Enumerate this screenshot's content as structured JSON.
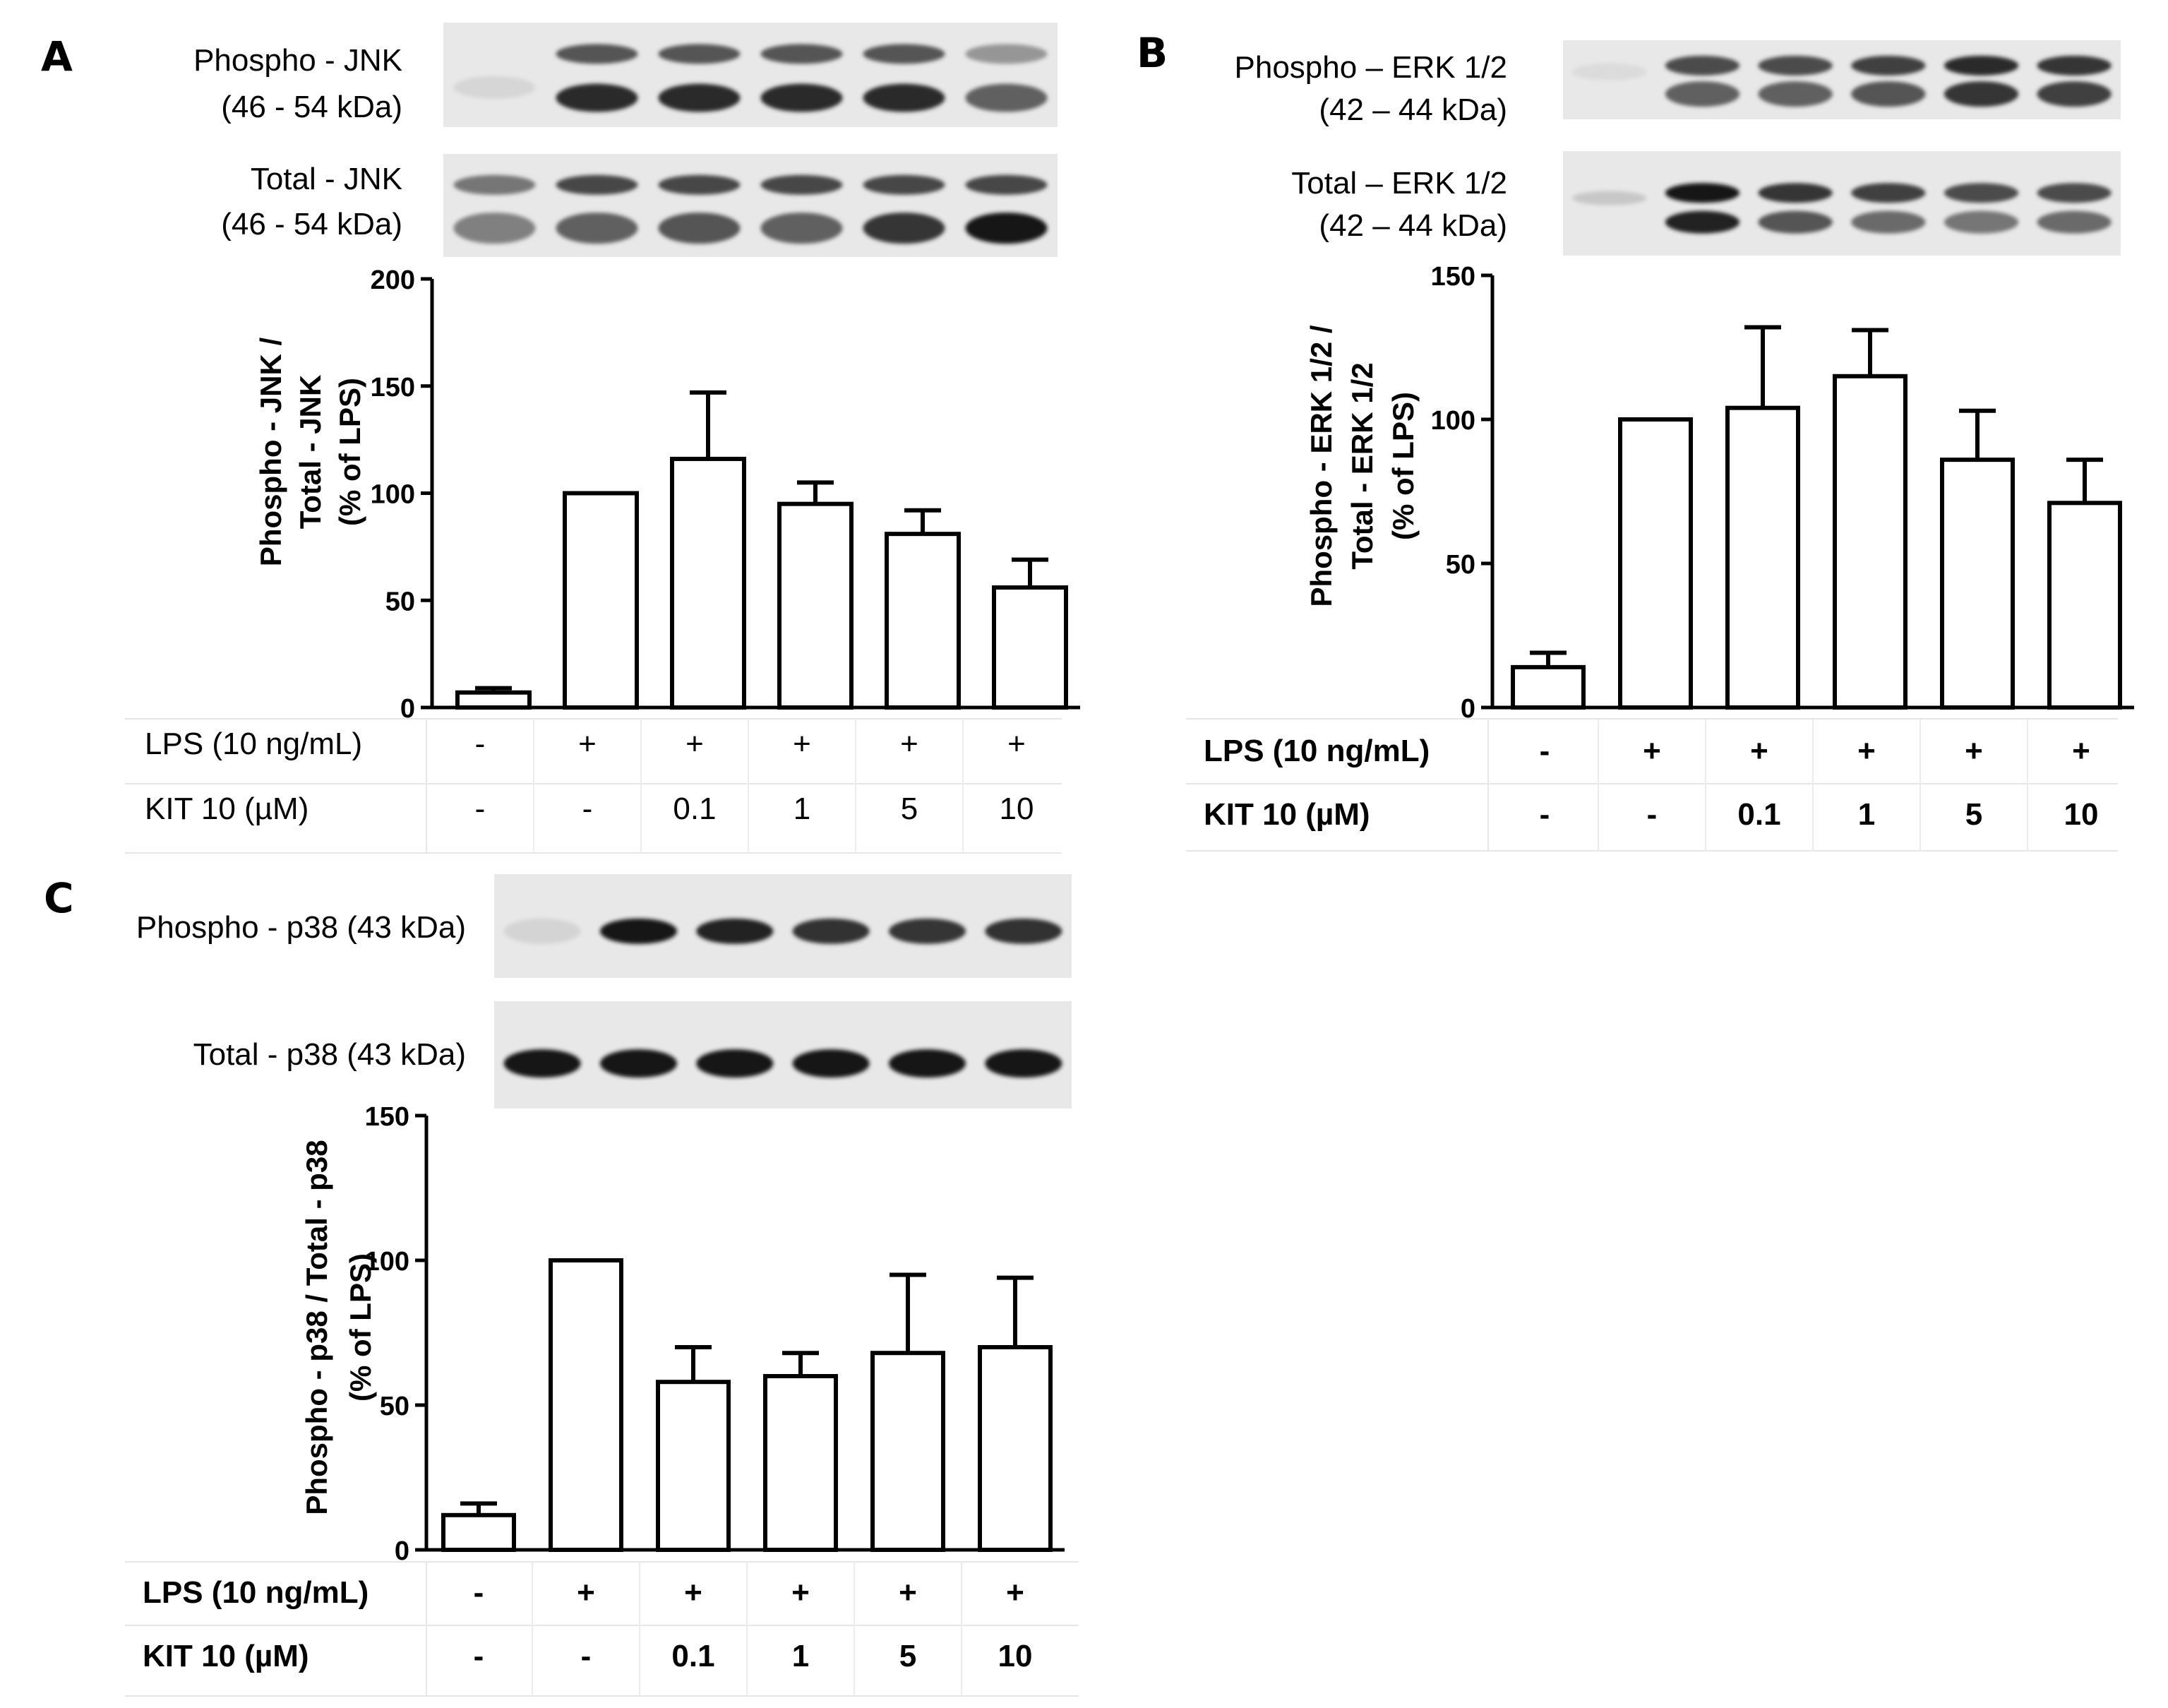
{
  "figure": {
    "panels": [
      {
        "letter": "A",
        "blot_rows": [
          {
            "label_lines": [
              "Phospho - JNK",
              "(46 - 54 kDa)"
            ],
            "pattern": "doublet_phospho_jnk"
          },
          {
            "label_lines": [
              "Total - JNK",
              "(46 - 54 kDa)"
            ],
            "pattern": "doublet_total_jnk"
          }
        ],
        "condition_rows": [
          {
            "label": "LPS (10 ng/mL)",
            "values": [
              "-",
              "+",
              "+",
              "+",
              "+",
              "+"
            ]
          },
          {
            "label": "KIT 10 (µM)",
            "values": [
              "-",
              "-",
              "0.1",
              "1",
              "5",
              "10"
            ]
          }
        ],
        "bold_labels": false
      },
      {
        "letter": "B",
        "blot_rows": [
          {
            "label_lines": [
              "Phospho – ERK 1/2",
              "(42 – 44 kDa)"
            ],
            "pattern": "doublet_phospho_erk"
          },
          {
            "label_lines": [
              "Total – ERK 1/2",
              "(42 – 44 kDa)"
            ],
            "pattern": "doublet_total_erk"
          }
        ],
        "condition_rows": [
          {
            "label": "LPS (10 ng/mL)",
            "values": [
              "-",
              "+",
              "+",
              "+",
              "+",
              "+"
            ]
          },
          {
            "label": "KIT 10 (µM)",
            "values": [
              "-",
              "-",
              "0.1",
              "1",
              "5",
              "10"
            ]
          }
        ],
        "bold_labels": true
      },
      {
        "letter": "C",
        "blot_rows": [
          {
            "label_lines": [
              "Phospho - p38 (43 kDa)"
            ],
            "pattern": "single_phospho_p38"
          },
          {
            "label_lines": [
              "Total - p38 (43 kDa)"
            ],
            "pattern": "single_total_p38"
          }
        ],
        "condition_rows": [
          {
            "label": "LPS (10 ng/mL)",
            "values": [
              "-",
              "+",
              "+",
              "+",
              "+",
              "+"
            ]
          },
          {
            "label": "KIT 10 (µM)",
            "values": [
              "-",
              "-",
              "0.1",
              "1",
              "5",
              "10"
            ]
          }
        ],
        "bold_labels": true
      }
    ]
  },
  "chart_data": [
    {
      "panel": "A",
      "type": "bar",
      "ylabel_lines": [
        "Phospho - JNK /",
        "Total - JNK",
        "(% of LPS)"
      ],
      "ylim": [
        0,
        200
      ],
      "yticks": [
        0,
        50,
        100,
        150,
        200
      ],
      "values": [
        7,
        100,
        116,
        95,
        81,
        56
      ],
      "errors": [
        2,
        0,
        31,
        10,
        11,
        13
      ],
      "bar_fill": "#ffffff",
      "bar_stroke": "#000000"
    },
    {
      "panel": "B",
      "type": "bar",
      "ylabel_lines": [
        "Phospho - ERK 1/2 /",
        "Total - ERK 1/2",
        "(% of LPS)"
      ],
      "ylim": [
        0,
        150
      ],
      "yticks": [
        0,
        50,
        100,
        150
      ],
      "values": [
        14,
        100,
        104,
        115,
        86,
        71
      ],
      "errors": [
        5,
        0,
        28,
        16,
        17,
        15
      ],
      "bar_fill": "#ffffff",
      "bar_stroke": "#000000"
    },
    {
      "panel": "C",
      "type": "bar",
      "ylabel_lines": [
        "Phospho - p38 / Total - p38",
        "(% of LPS)"
      ],
      "ylim": [
        0,
        150
      ],
      "yticks": [
        0,
        50,
        100,
        150
      ],
      "values": [
        12,
        100,
        58,
        60,
        68,
        70
      ],
      "errors": [
        4,
        0,
        12,
        8,
        27,
        24
      ],
      "bar_fill": "#ffffff",
      "bar_stroke": "#000000"
    }
  ]
}
